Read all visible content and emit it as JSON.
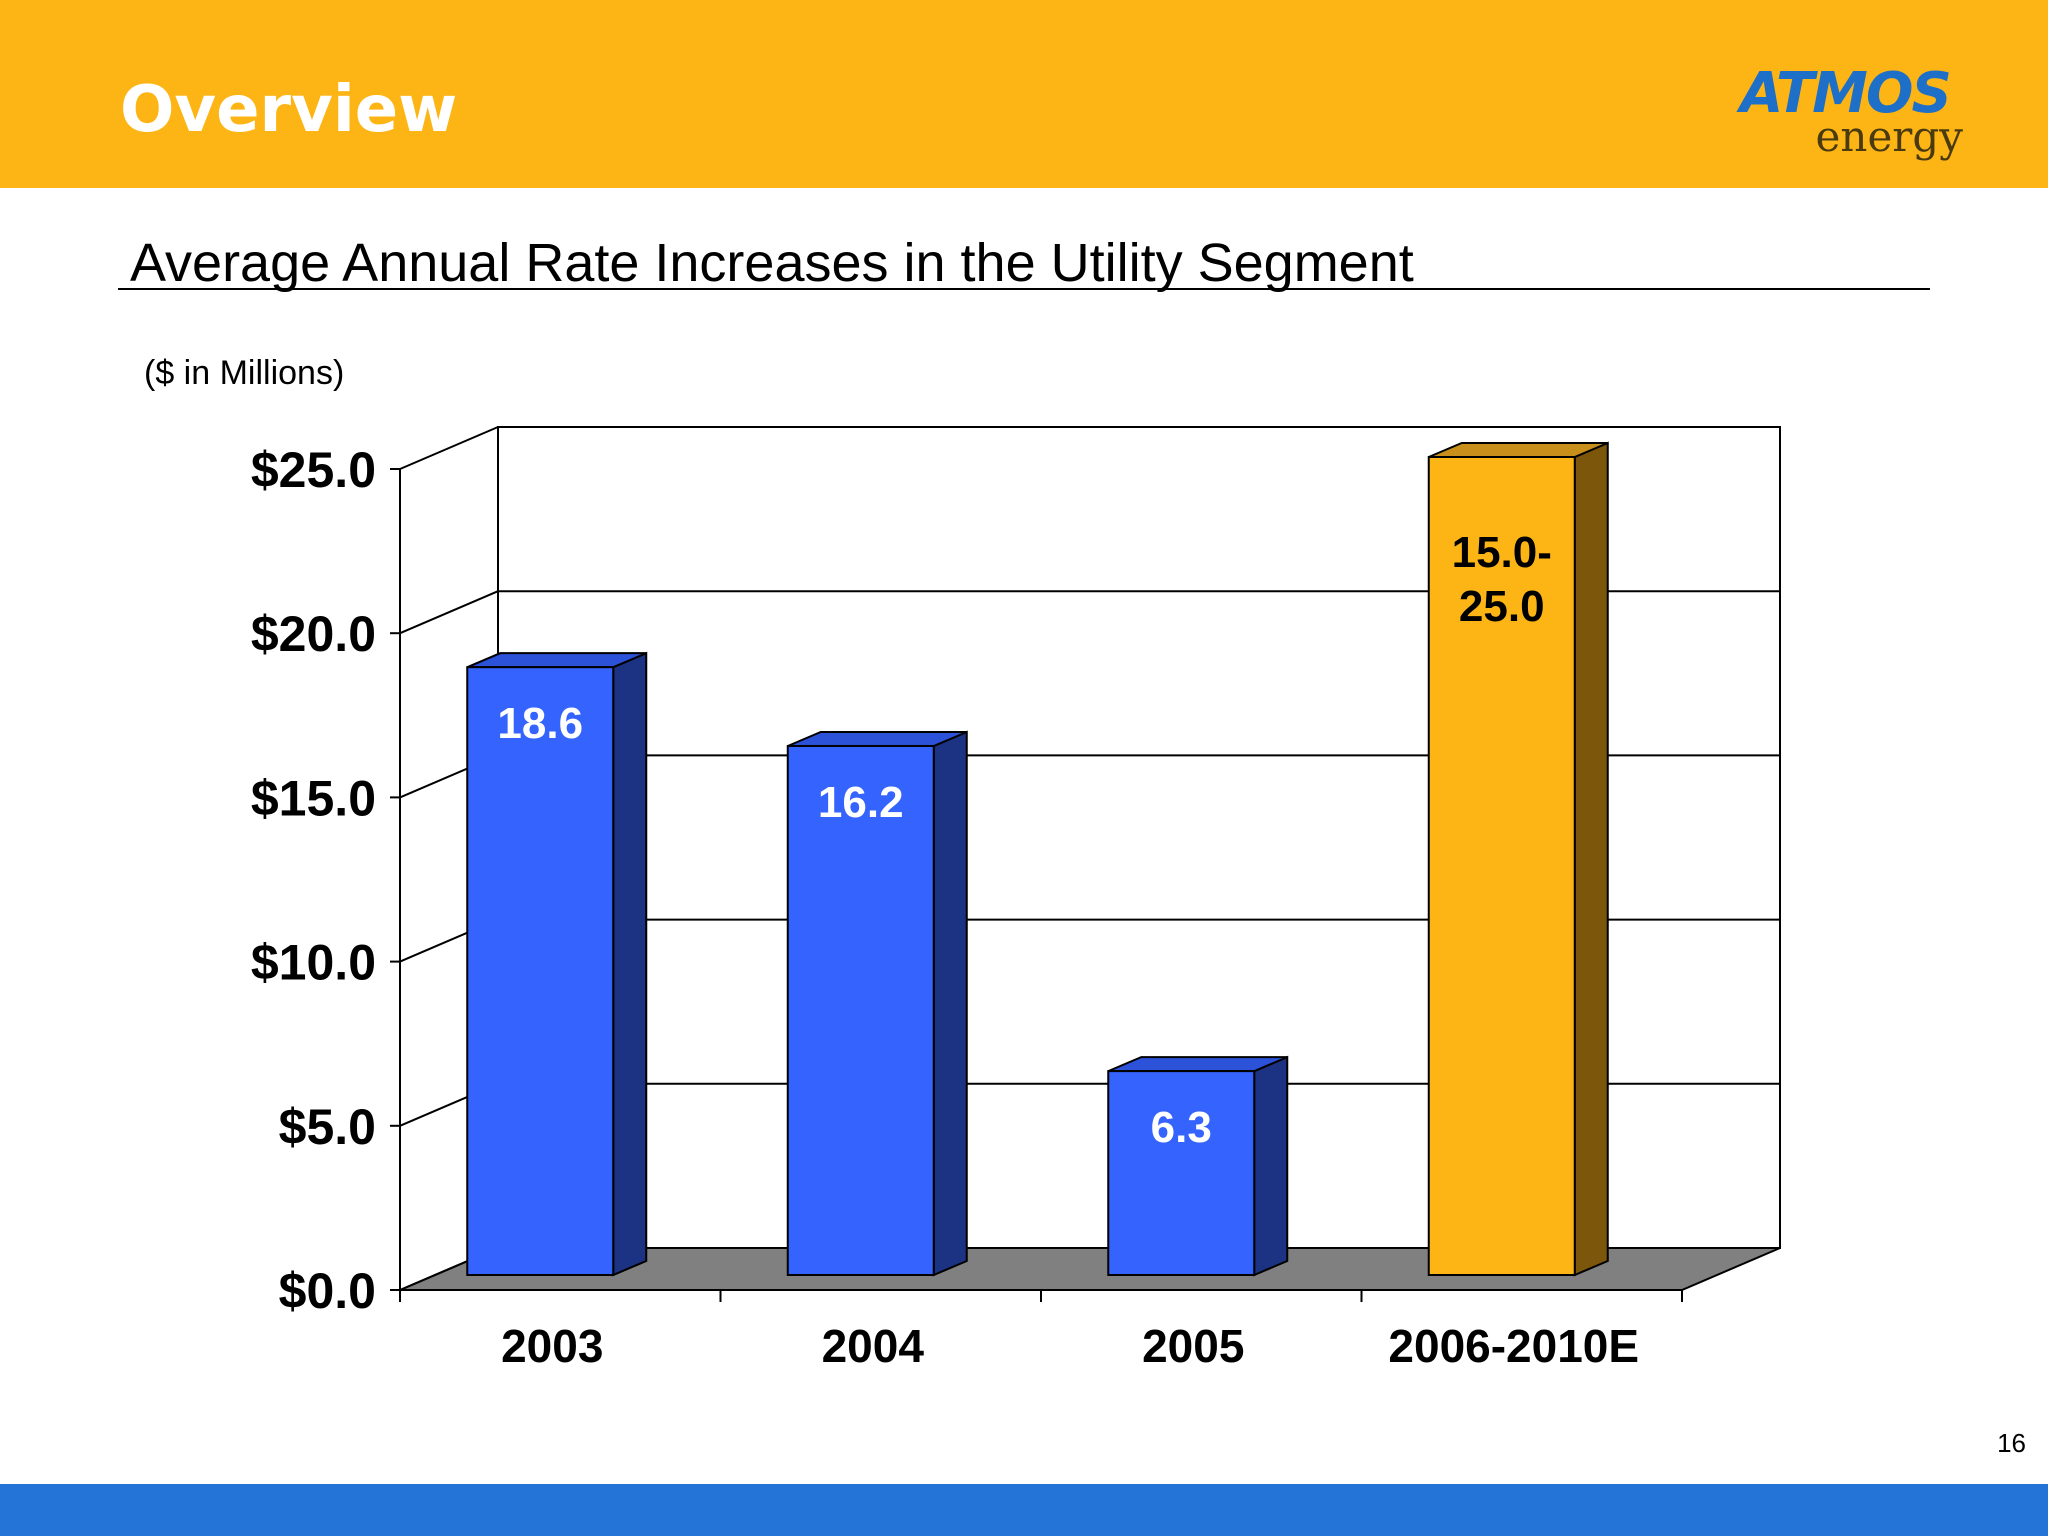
{
  "header": {
    "title": "Overview"
  },
  "logo": {
    "word": "ATMOS",
    "sub": "energy"
  },
  "slide": {
    "page_number": "16"
  },
  "chart_data": {
    "type": "bar",
    "title": "Average Annual Rate Increases in the Utility Segment",
    "units_note": "($ in Millions)",
    "categories": [
      "2003",
      "2004",
      "2005",
      "2006-2010E"
    ],
    "values": [
      18.6,
      16.2,
      6.3,
      25.0
    ],
    "range_low": [
      null,
      null,
      null,
      15.0
    ],
    "data_labels": [
      "18.6",
      "16.2",
      "6.3",
      "15.0-\n25.0"
    ],
    "y_ticks": [
      "$0.0",
      "$5.0",
      "$10.0",
      "$15.0",
      "$20.0",
      "$25.0"
    ],
    "y_tick_values": [
      0,
      5,
      10,
      15,
      20,
      25
    ],
    "ylim": [
      0,
      25
    ],
    "grid": true,
    "style": "3d",
    "colors": {
      "bar_front": "#3563FD",
      "bar_side": "#1C3282",
      "bar_top": "#2B52D8",
      "estimate_front": "#FDB515",
      "estimate_side": "#7C560B",
      "estimate_top": "#C8901A",
      "floor": "#808080"
    }
  }
}
